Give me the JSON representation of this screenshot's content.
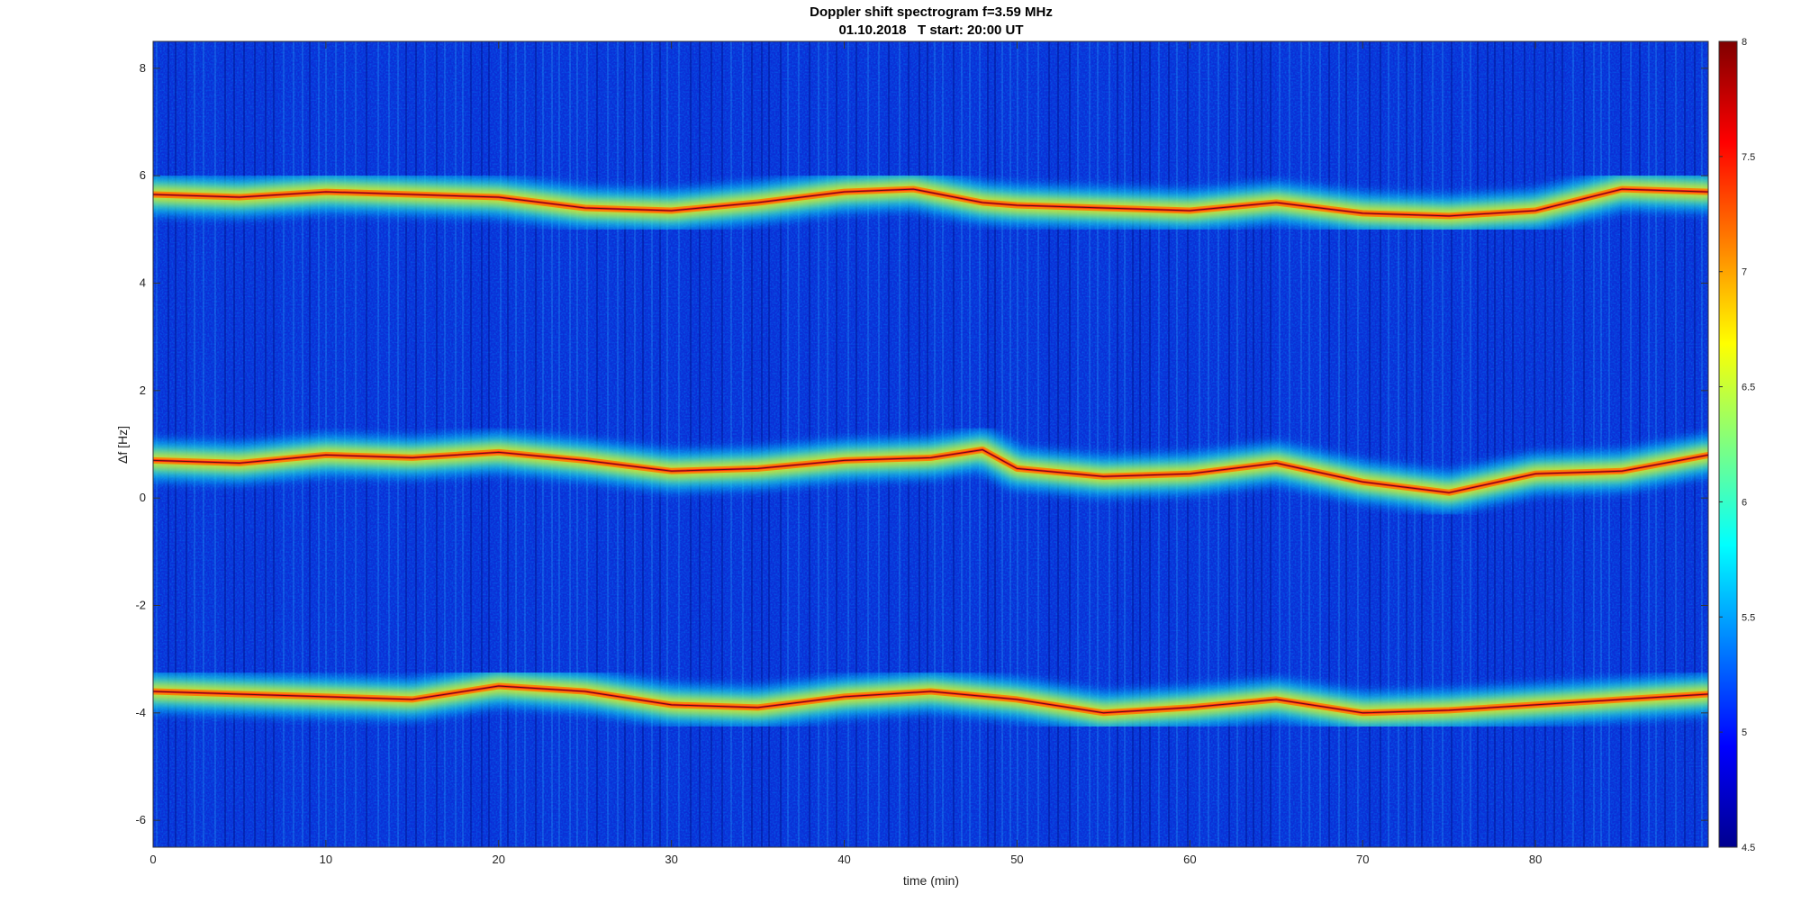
{
  "chart_data": {
    "type": "heatmap",
    "title": "Doppler shift spectrogram f=3.59 MHz",
    "subtitle": "01.10.2018   T start: 20:00 UT",
    "xlabel": "time (min)",
    "ylabel": "Δf [Hz]",
    "xlim": [
      0,
      90
    ],
    "ylim": [
      -6.5,
      8.5
    ],
    "x_ticks": [
      0,
      10,
      20,
      30,
      40,
      50,
      60,
      70,
      80
    ],
    "y_ticks": [
      -6,
      -4,
      -2,
      0,
      2,
      4,
      6,
      8
    ],
    "colorbar": {
      "colormap": "jet",
      "range": [
        4.5,
        8
      ],
      "ticks": [
        4.5,
        5,
        5.5,
        6,
        6.5,
        7,
        7.5,
        8
      ]
    },
    "grid": false,
    "series": [
      {
        "time": [
          0,
          5,
          10,
          15,
          20,
          25,
          30,
          35,
          40,
          44,
          48,
          50,
          55,
          60,
          65,
          70,
          75,
          80,
          85,
          90
        ],
        "values": [
          5.65,
          5.6,
          5.7,
          5.65,
          5.6,
          5.4,
          5.35,
          5.5,
          5.7,
          5.75,
          5.5,
          5.45,
          5.4,
          5.35,
          5.5,
          5.3,
          5.25,
          5.35,
          5.75,
          5.7
        ]
      },
      {
        "time": [
          0,
          5,
          10,
          15,
          20,
          25,
          30,
          35,
          40,
          45,
          48,
          50,
          55,
          60,
          65,
          70,
          75,
          80,
          85,
          90
        ],
        "values": [
          0.7,
          0.65,
          0.8,
          0.75,
          0.85,
          0.7,
          0.5,
          0.55,
          0.7,
          0.75,
          0.9,
          0.55,
          0.4,
          0.45,
          0.65,
          0.3,
          0.1,
          0.45,
          0.5,
          0.8
        ]
      },
      {
        "time": [
          0,
          5,
          10,
          15,
          20,
          25,
          30,
          35,
          40,
          45,
          50,
          55,
          60,
          65,
          70,
          75,
          80,
          85,
          90
        ],
        "values": [
          -3.6,
          -3.65,
          -3.7,
          -3.75,
          -3.5,
          -3.6,
          -3.85,
          -3.9,
          -3.7,
          -3.6,
          -3.75,
          -4.0,
          -3.9,
          -3.75,
          -4.0,
          -3.95,
          -3.85,
          -3.75,
          -3.65
        ]
      }
    ]
  }
}
